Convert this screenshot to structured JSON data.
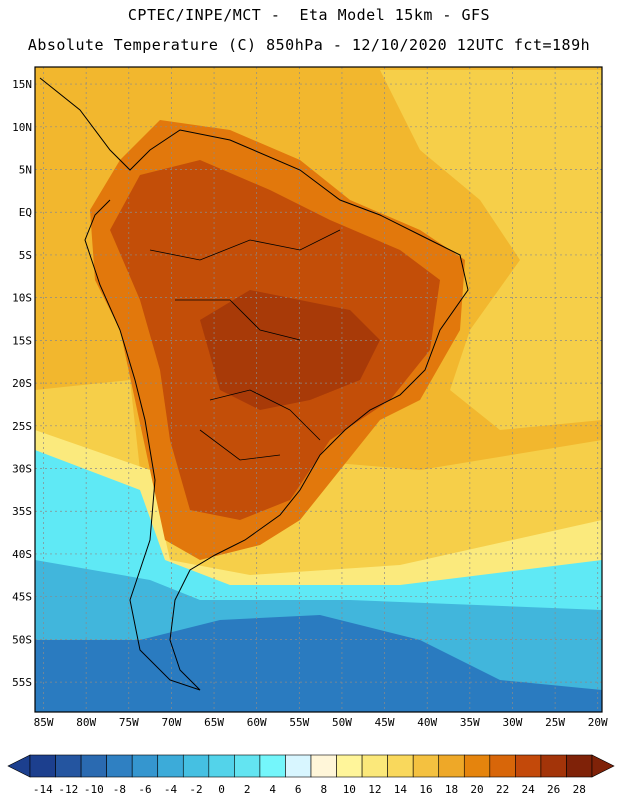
{
  "header": {
    "line1": "CPTEC/INPE/MCT -  Eta Model 15km - GFS",
    "line2": "Absolute Temperature (C) 850hPa - 12/10/2020 12UTC fct=189h"
  },
  "map": {
    "lat_labels": [
      "15N",
      "10N",
      "5N",
      "EQ",
      "5S",
      "10S",
      "15S",
      "20S",
      "25S",
      "30S",
      "35S",
      "40S",
      "45S",
      "50S",
      "55S"
    ],
    "lon_labels": [
      "85W",
      "80W",
      "75W",
      "70W",
      "65W",
      "60W",
      "55W",
      "50W",
      "45W",
      "40W",
      "35W",
      "30W",
      "25W",
      "20W"
    ],
    "regions": {
      "ocean_warm": "#f2b72e",
      "ocean_mild": "#f6cf49",
      "land_hot": "#e2780c",
      "land_very_hot": "#c34e08",
      "core_hot": "#a83a08",
      "south_cool": "#fbea7d",
      "cold_water": "#5fe9f5",
      "colder": "#41b6dc",
      "coldest": "#2a7bc0"
    }
  },
  "colorbar": {
    "labels": [
      "-14",
      "-12",
      "-10",
      "-8",
      "-6",
      "-4",
      "-2",
      "0",
      "2",
      "4",
      "6",
      "8",
      "10",
      "12",
      "14",
      "16",
      "18",
      "20",
      "22",
      "24",
      "26",
      "28"
    ],
    "colors": [
      "#1c3f8e",
      "#2455a0",
      "#2a6ab1",
      "#2f80c2",
      "#3596cf",
      "#3cabd9",
      "#45c0e2",
      "#53d3ea",
      "#63e4f1",
      "#74f6fb",
      "#d8f6ff",
      "#fff6d9",
      "#fff59a",
      "#fbe87a",
      "#f9d85c",
      "#f4c140",
      "#eea828",
      "#e5840d",
      "#d86609",
      "#c3490a",
      "#a33409",
      "#7f2208"
    ]
  }
}
